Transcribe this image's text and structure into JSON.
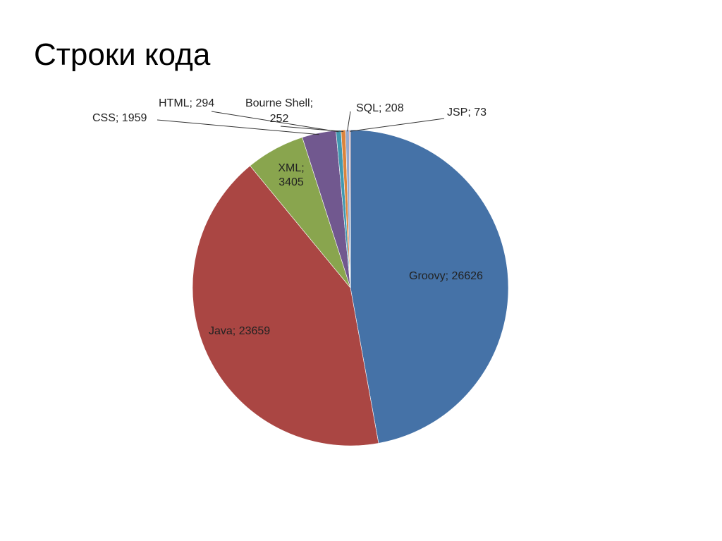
{
  "slide": {
    "title": "Строки кода"
  },
  "chart_data": {
    "type": "pie",
    "title": "",
    "series": [
      {
        "categories": [
          "Groovy",
          "Java",
          "XML",
          "CSS",
          "HTML",
          "Bourne Shell",
          "SQL",
          "JSP"
        ],
        "values": [
          26626,
          23659,
          3405,
          1959,
          294,
          252,
          208,
          73
        ]
      }
    ],
    "slices": [
      {
        "label": "Groovy",
        "value": 26626,
        "color": "#4572A7"
      },
      {
        "label": "Java",
        "value": 23659,
        "color": "#AA4643"
      },
      {
        "label": "XML",
        "value": 3405,
        "color": "#89A54E"
      },
      {
        "label": "CSS",
        "value": 1959,
        "color": "#71588F"
      },
      {
        "label": "HTML",
        "value": 294,
        "color": "#4198AF"
      },
      {
        "label": "Bourne Shell",
        "value": 252,
        "color": "#DB843D"
      },
      {
        "label": "SQL",
        "value": 208,
        "color": "#93A9CF"
      },
      {
        "label": "JSP",
        "value": 73,
        "color": "#D19392"
      }
    ],
    "data_labels": [
      {
        "lines": [
          "Groovy; 26626"
        ]
      },
      {
        "lines": [
          "Java; 23659"
        ]
      },
      {
        "lines": [
          "XML;",
          "3405"
        ]
      },
      {
        "lines": [
          "CSS; 1959"
        ]
      },
      {
        "lines": [
          "HTML; 294"
        ]
      },
      {
        "lines": [
          "Bourne Shell;",
          "252"
        ]
      },
      {
        "lines": [
          "SQL; 208"
        ]
      },
      {
        "lines": [
          "JSP; 73"
        ]
      }
    ],
    "start_angle": "top",
    "direction": "clockwise",
    "legend": "none"
  }
}
